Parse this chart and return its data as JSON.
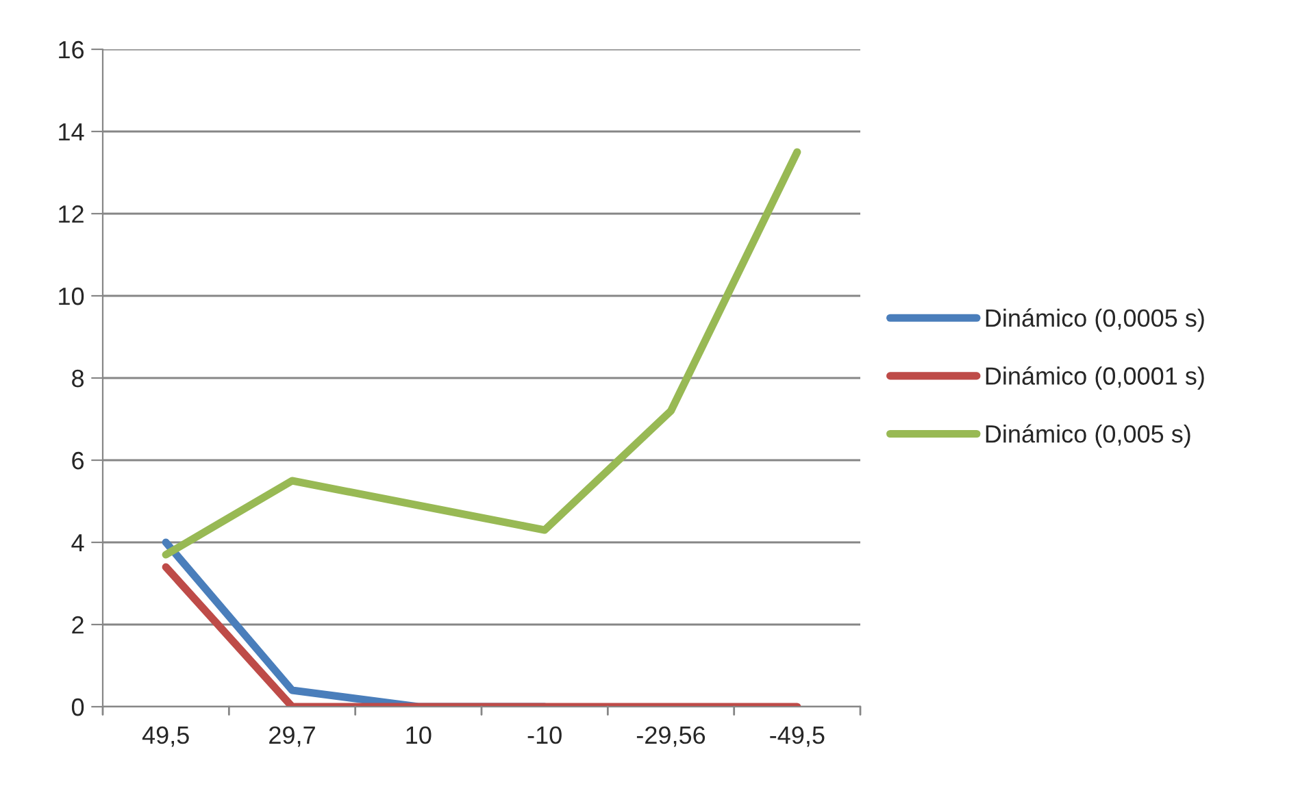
{
  "chart_data": {
    "type": "line",
    "categories": [
      "49,5",
      "29,7",
      "10",
      "-10",
      "-29,56",
      "-49,5"
    ],
    "series": [
      {
        "name": "Dinámico (0,0005 s)",
        "color": "#4a7ebb",
        "values": [
          4.0,
          0.4,
          0,
          0,
          null,
          null
        ]
      },
      {
        "name": "Dinámico (0,0001 s)",
        "color": "#be4b48",
        "values": [
          3.4,
          0,
          0,
          0,
          0,
          0
        ]
      },
      {
        "name": "Dinámico (0,005 s)",
        "color": "#98b954",
        "values": [
          3.7,
          5.5,
          4.9,
          4.3,
          7.2,
          13.5
        ]
      }
    ],
    "ylim": [
      0,
      16
    ],
    "yticks": [
      0,
      2,
      4,
      6,
      8,
      10,
      12,
      14,
      16
    ],
    "grid": "y",
    "legend": "right",
    "marker": "none",
    "line_style": "solid"
  }
}
